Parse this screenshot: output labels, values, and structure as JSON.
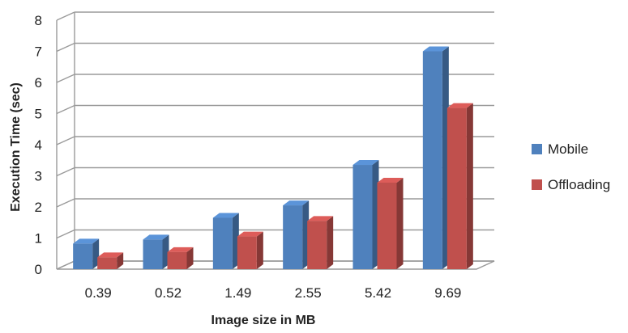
{
  "chart_data": {
    "type": "bar",
    "title": "",
    "xlabel": "Image size in  MB",
    "ylabel": "Execution Time (sec)",
    "categories": [
      "0.39",
      "0.52",
      "1.49",
      "2.55",
      "5.42",
      "9.69"
    ],
    "ylim": [
      0,
      8
    ],
    "yticks": [
      "0",
      "1",
      "2",
      "3",
      "4",
      "5",
      "6",
      "7",
      "8"
    ],
    "grid": true,
    "legend_position": "right",
    "series": [
      {
        "name": "Mobile",
        "color": "#4F81BD",
        "values": [
          0.82,
          0.95,
          1.65,
          2.05,
          3.35,
          7.0
        ]
      },
      {
        "name": "Offloading",
        "color": "#C0504D",
        "values": [
          0.38,
          0.55,
          1.05,
          1.55,
          2.78,
          5.18
        ]
      }
    ]
  }
}
